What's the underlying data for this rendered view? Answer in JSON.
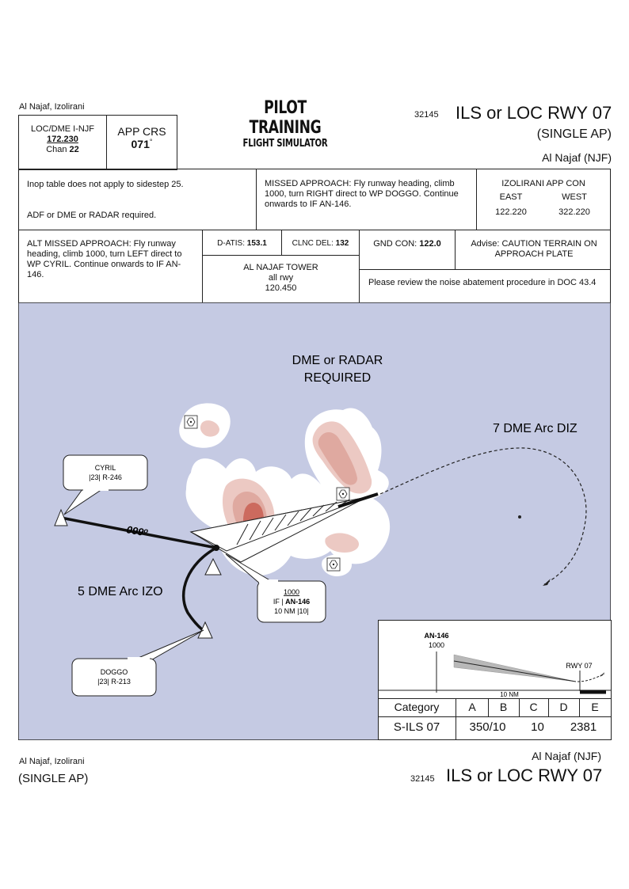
{
  "header": {
    "location": "Al Najaf, Izolirani",
    "logo_line1": "PILOT TRAINING",
    "logo_line2": "FLIGHT SIMULATOR",
    "chart_number": "32145",
    "procedure_title": "ILS or LOC RWY 07",
    "variant": "(SINGLE AP)",
    "airport": "Al Najaf (NJF)"
  },
  "loc_box": {
    "label": "LOC/DME I-NJF",
    "freq": "172.230",
    "chan_label": "Chan",
    "chan_value": "22"
  },
  "crs_box": {
    "label": "APP CRS",
    "value": "071",
    "unit": "°"
  },
  "briefing": {
    "inop_note": "Inop table does not apply to sidestep 25.",
    "req_note": "ADF or DME or RADAR required.",
    "missed_approach": "MISSED APPROACH: Fly runway heading, climb 1000, turn RIGHT direct to WP DOGGO. Continue onwards to IF AN-146.",
    "app_con_title": "IZOLIRANI APP CON",
    "app_con_east_label": "EAST",
    "app_con_west_label": "WEST",
    "app_con_east_freq": "122.220",
    "app_con_west_freq": "322.220",
    "alt_missed": "ALT MISSED APPROACH: Fly runway heading, climb 1000, turn LEFT direct to WP CYRIL. Continue onwards to IF AN-146.",
    "datis_label": "D-ATIS:",
    "datis_freq": "153.1",
    "clnc_label": "CLNC DEL:",
    "clnc_freq": "132",
    "gnd_label": "GND CON:",
    "gnd_freq": "122.0",
    "advise": "Advise: CAUTION TERRAIN ON APPROACH PLATE",
    "tower_name": "AL NAJAF TOWER",
    "tower_rwy": "all rwy",
    "tower_freq": "120.450",
    "noise_note": "Please review the noise abatement procedure in DOC 43.4"
  },
  "plan": {
    "dme_note_line1": "DME or RADAR",
    "dme_note_line2": "REQUIRED",
    "arc_diz_label": "7 DME Arc DIZ",
    "arc_izo_label": "5 DME Arc IZO",
    "track_label": "099",
    "track_unit": "o",
    "cyril": {
      "name": "CYRIL",
      "detail": "|23| R-246"
    },
    "doggo": {
      "name": "DOGGO",
      "detail": "|23| R-213"
    },
    "if_fix": {
      "altitude": "1000",
      "prefix": "IF |",
      "name": "AN-146",
      "detail": "10 NM |10|"
    }
  },
  "profile": {
    "fix_name": "AN-146",
    "fix_alt": "1000",
    "rwy_label": "RWY 07",
    "distance_label": "10 NM"
  },
  "minima": {
    "headers": [
      "Category",
      "A",
      "B",
      "C",
      "D",
      "E"
    ],
    "row_label": "S-ILS 07",
    "ab_value": "350/10",
    "c_value": "10",
    "de_value": "2381"
  },
  "footer": {
    "location": "Al Najaf, Izolirani",
    "variant": "(SINGLE AP)",
    "airport": "Al Najaf (NJF)",
    "chart_number": "32145",
    "procedure_title": "ILS or LOC RWY 07"
  },
  "colors": {
    "map_background": "#c5cae3",
    "terrain_white": "#ffffff",
    "terrain_light": "#ecc9c3",
    "terrain_mid": "#dfa9a0",
    "terrain_dark": "#cc6a5e"
  }
}
